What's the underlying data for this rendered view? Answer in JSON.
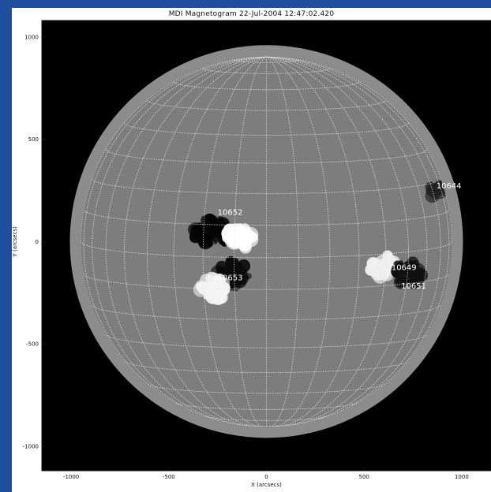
{
  "title": "MDI Magnetogram 22-Jul-2004 12:47:02.420",
  "xlabel": "X (arcsecs)",
  "ylabel": "Y (arcsecs)",
  "x_ticks": [
    -1000,
    -500,
    0,
    500,
    1000
  ],
  "y_ticks": [
    -1000,
    -500,
    0,
    500,
    1000
  ],
  "xlim": [
    -1150,
    1150
  ],
  "ylim": [
    -1120,
    1080
  ],
  "solar_radius_arcsec": 950,
  "grid": true,
  "grid_spacing_deg": 10,
  "active_regions": [
    {
      "number": "10652",
      "x": -250,
      "y": 130
    },
    {
      "number": "10653",
      "x": -250,
      "y": -190
    },
    {
      "number": "10649",
      "x": 640,
      "y": -140
    },
    {
      "number": "10651",
      "x": 690,
      "y": -230
    },
    {
      "number": "10644",
      "x": 870,
      "y": 260
    }
  ],
  "colors": {
    "page_background": "#1d4f9e",
    "plot_background": "#000000",
    "limb_ring": "#8c8c8c",
    "disk": "#7d7d7d",
    "grid": "#e8e8e8"
  }
}
